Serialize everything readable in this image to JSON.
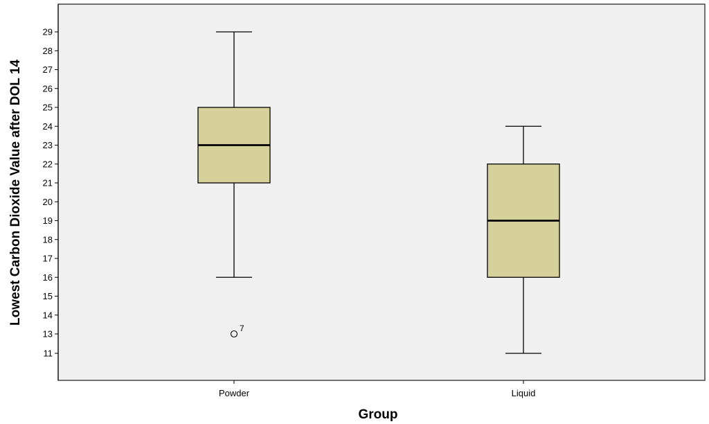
{
  "chart_data": {
    "type": "boxplot",
    "xlabel": "Group",
    "ylabel": "Lowest Carbon Dioxide Value after DOL 14",
    "y_ticks": [
      11,
      13,
      14,
      15,
      16,
      17,
      18,
      19,
      20,
      21,
      22,
      23,
      24,
      25,
      26,
      27,
      28,
      29
    ],
    "ylim": [
      11,
      29
    ],
    "grid": false,
    "colors": {
      "box_fill": "#d6d09a",
      "plot_bg": "#f0f0f0"
    },
    "categories": [
      "Powder",
      "Liquid"
    ],
    "boxes": [
      {
        "category": "Powder",
        "whisker_low": 16,
        "q1": 21,
        "median": 23,
        "q3": 25,
        "whisker_high": 29,
        "outliers": [
          {
            "value": 13,
            "label": "7"
          }
        ]
      },
      {
        "category": "Liquid",
        "whisker_low": 11,
        "q1": 16,
        "median": 19,
        "q3": 22,
        "whisker_high": 24,
        "outliers": []
      }
    ]
  }
}
